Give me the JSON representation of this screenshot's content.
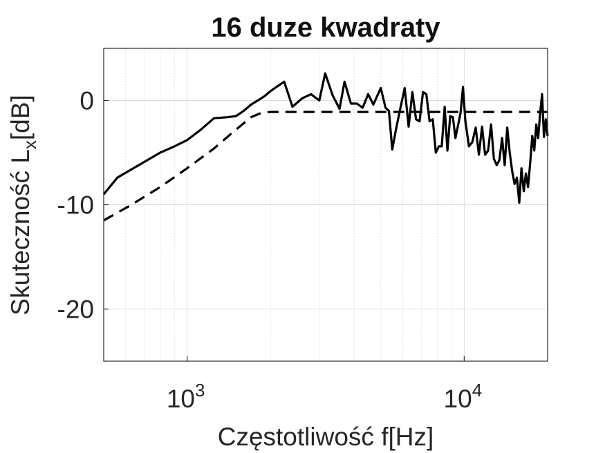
{
  "chart_data": {
    "type": "line",
    "title": "16 duze kwadraty",
    "xlabel": "Częstotliwość f[Hz]",
    "ylabel": "Skuteczność L",
    "ylabel_subscript": "x",
    "ylabel_unit": "[dB]",
    "xscale": "log",
    "xlim": [
      500,
      20000
    ],
    "ylim": [
      -25,
      5
    ],
    "x_ticks": [
      1000,
      10000
    ],
    "x_tick_labels": [
      {
        "base": "10",
        "exp": "3"
      },
      {
        "base": "10",
        "exp": "4"
      }
    ],
    "y_ticks": [
      0,
      -10,
      -20
    ],
    "y_tick_labels": [
      "0",
      "-10",
      "-20"
    ],
    "grid": true,
    "series": [
      {
        "style": "solid",
        "color": "#000000",
        "points": [
          [
            500,
            -9.0
          ],
          [
            560,
            -7.4
          ],
          [
            630,
            -6.6
          ],
          [
            710,
            -5.8
          ],
          [
            800,
            -5.0
          ],
          [
            900,
            -4.4
          ],
          [
            1000,
            -3.8
          ],
          [
            1120,
            -2.8
          ],
          [
            1250,
            -1.7
          ],
          [
            1400,
            -1.6
          ],
          [
            1500,
            -1.5
          ],
          [
            1600,
            -1.0
          ],
          [
            1700,
            -0.4
          ],
          [
            1800,
            0.0
          ],
          [
            1900,
            0.4
          ],
          [
            2000,
            0.9
          ],
          [
            2100,
            1.3
          ],
          [
            2240,
            1.8
          ],
          [
            2400,
            -0.6
          ],
          [
            2600,
            0.2
          ],
          [
            2800,
            0.6
          ],
          [
            3000,
            0.0
          ],
          [
            3150,
            2.6
          ],
          [
            3350,
            0.5
          ],
          [
            3550,
            -0.8
          ],
          [
            3700,
            1.8
          ],
          [
            3900,
            -0.3
          ],
          [
            4100,
            -0.3
          ],
          [
            4300,
            -0.7
          ],
          [
            4500,
            0.6
          ],
          [
            4700,
            -0.4
          ],
          [
            5000,
            1.2
          ],
          [
            5200,
            -0.7
          ],
          [
            5350,
            -1.0
          ],
          [
            5500,
            -4.7
          ],
          [
            5700,
            -2.5
          ],
          [
            5900,
            -0.6
          ],
          [
            6100,
            1.2
          ],
          [
            6300,
            -2.5
          ],
          [
            6500,
            0.8
          ],
          [
            6700,
            -1.8
          ],
          [
            6900,
            -2.0
          ],
          [
            7100,
            0.8
          ],
          [
            7300,
            0.6
          ],
          [
            7500,
            -2.0
          ],
          [
            7700,
            -1.8
          ],
          [
            7900,
            -5.0
          ],
          [
            8100,
            -4.4
          ],
          [
            8300,
            -4.4
          ],
          [
            8500,
            -0.6
          ],
          [
            8700,
            -4.8
          ],
          [
            8900,
            -1.5
          ],
          [
            9100,
            -1.6
          ],
          [
            9300,
            -3.6
          ],
          [
            9500,
            -2.4
          ],
          [
            9700,
            -1.2
          ],
          [
            9900,
            1.3
          ],
          [
            10100,
            -2.0
          ],
          [
            10400,
            -4.4
          ],
          [
            10700,
            -4.0
          ],
          [
            11000,
            -2.6
          ],
          [
            11300,
            -5.2
          ],
          [
            11600,
            -2.5
          ],
          [
            11900,
            -5.2
          ],
          [
            12200,
            -4.8
          ],
          [
            12500,
            -2.3
          ],
          [
            12800,
            -5.6
          ],
          [
            13100,
            -6.2
          ],
          [
            13400,
            -5.7
          ],
          [
            13700,
            -3.6
          ],
          [
            14000,
            -6.2
          ],
          [
            14300,
            -2.6
          ],
          [
            14600,
            -5.0
          ],
          [
            14900,
            -6.8
          ],
          [
            15200,
            -8.0
          ],
          [
            15500,
            -7.4
          ],
          [
            15800,
            -9.8
          ],
          [
            16100,
            -6.5
          ],
          [
            16400,
            -8.7
          ],
          [
            16700,
            -7.0
          ],
          [
            17000,
            -8.3
          ],
          [
            17300,
            -6.0
          ],
          [
            17600,
            -3.4
          ],
          [
            17900,
            -4.8
          ],
          [
            18200,
            -2.3
          ],
          [
            18500,
            -3.6
          ],
          [
            18800,
            -1.2
          ],
          [
            19100,
            0.6
          ],
          [
            19400,
            -3.5
          ],
          [
            19700,
            -1.8
          ],
          [
            20000,
            -3.4
          ]
        ]
      },
      {
        "style": "dashed",
        "color": "#000000",
        "points": [
          [
            500,
            -11.5
          ],
          [
            630,
            -10.0
          ],
          [
            800,
            -8.3
          ],
          [
            1000,
            -6.5
          ],
          [
            1250,
            -4.6
          ],
          [
            1500,
            -2.8
          ],
          [
            1700,
            -1.6
          ],
          [
            1850,
            -1.2
          ],
          [
            2000,
            -1.1
          ],
          [
            20000,
            -1.1
          ]
        ]
      }
    ]
  }
}
